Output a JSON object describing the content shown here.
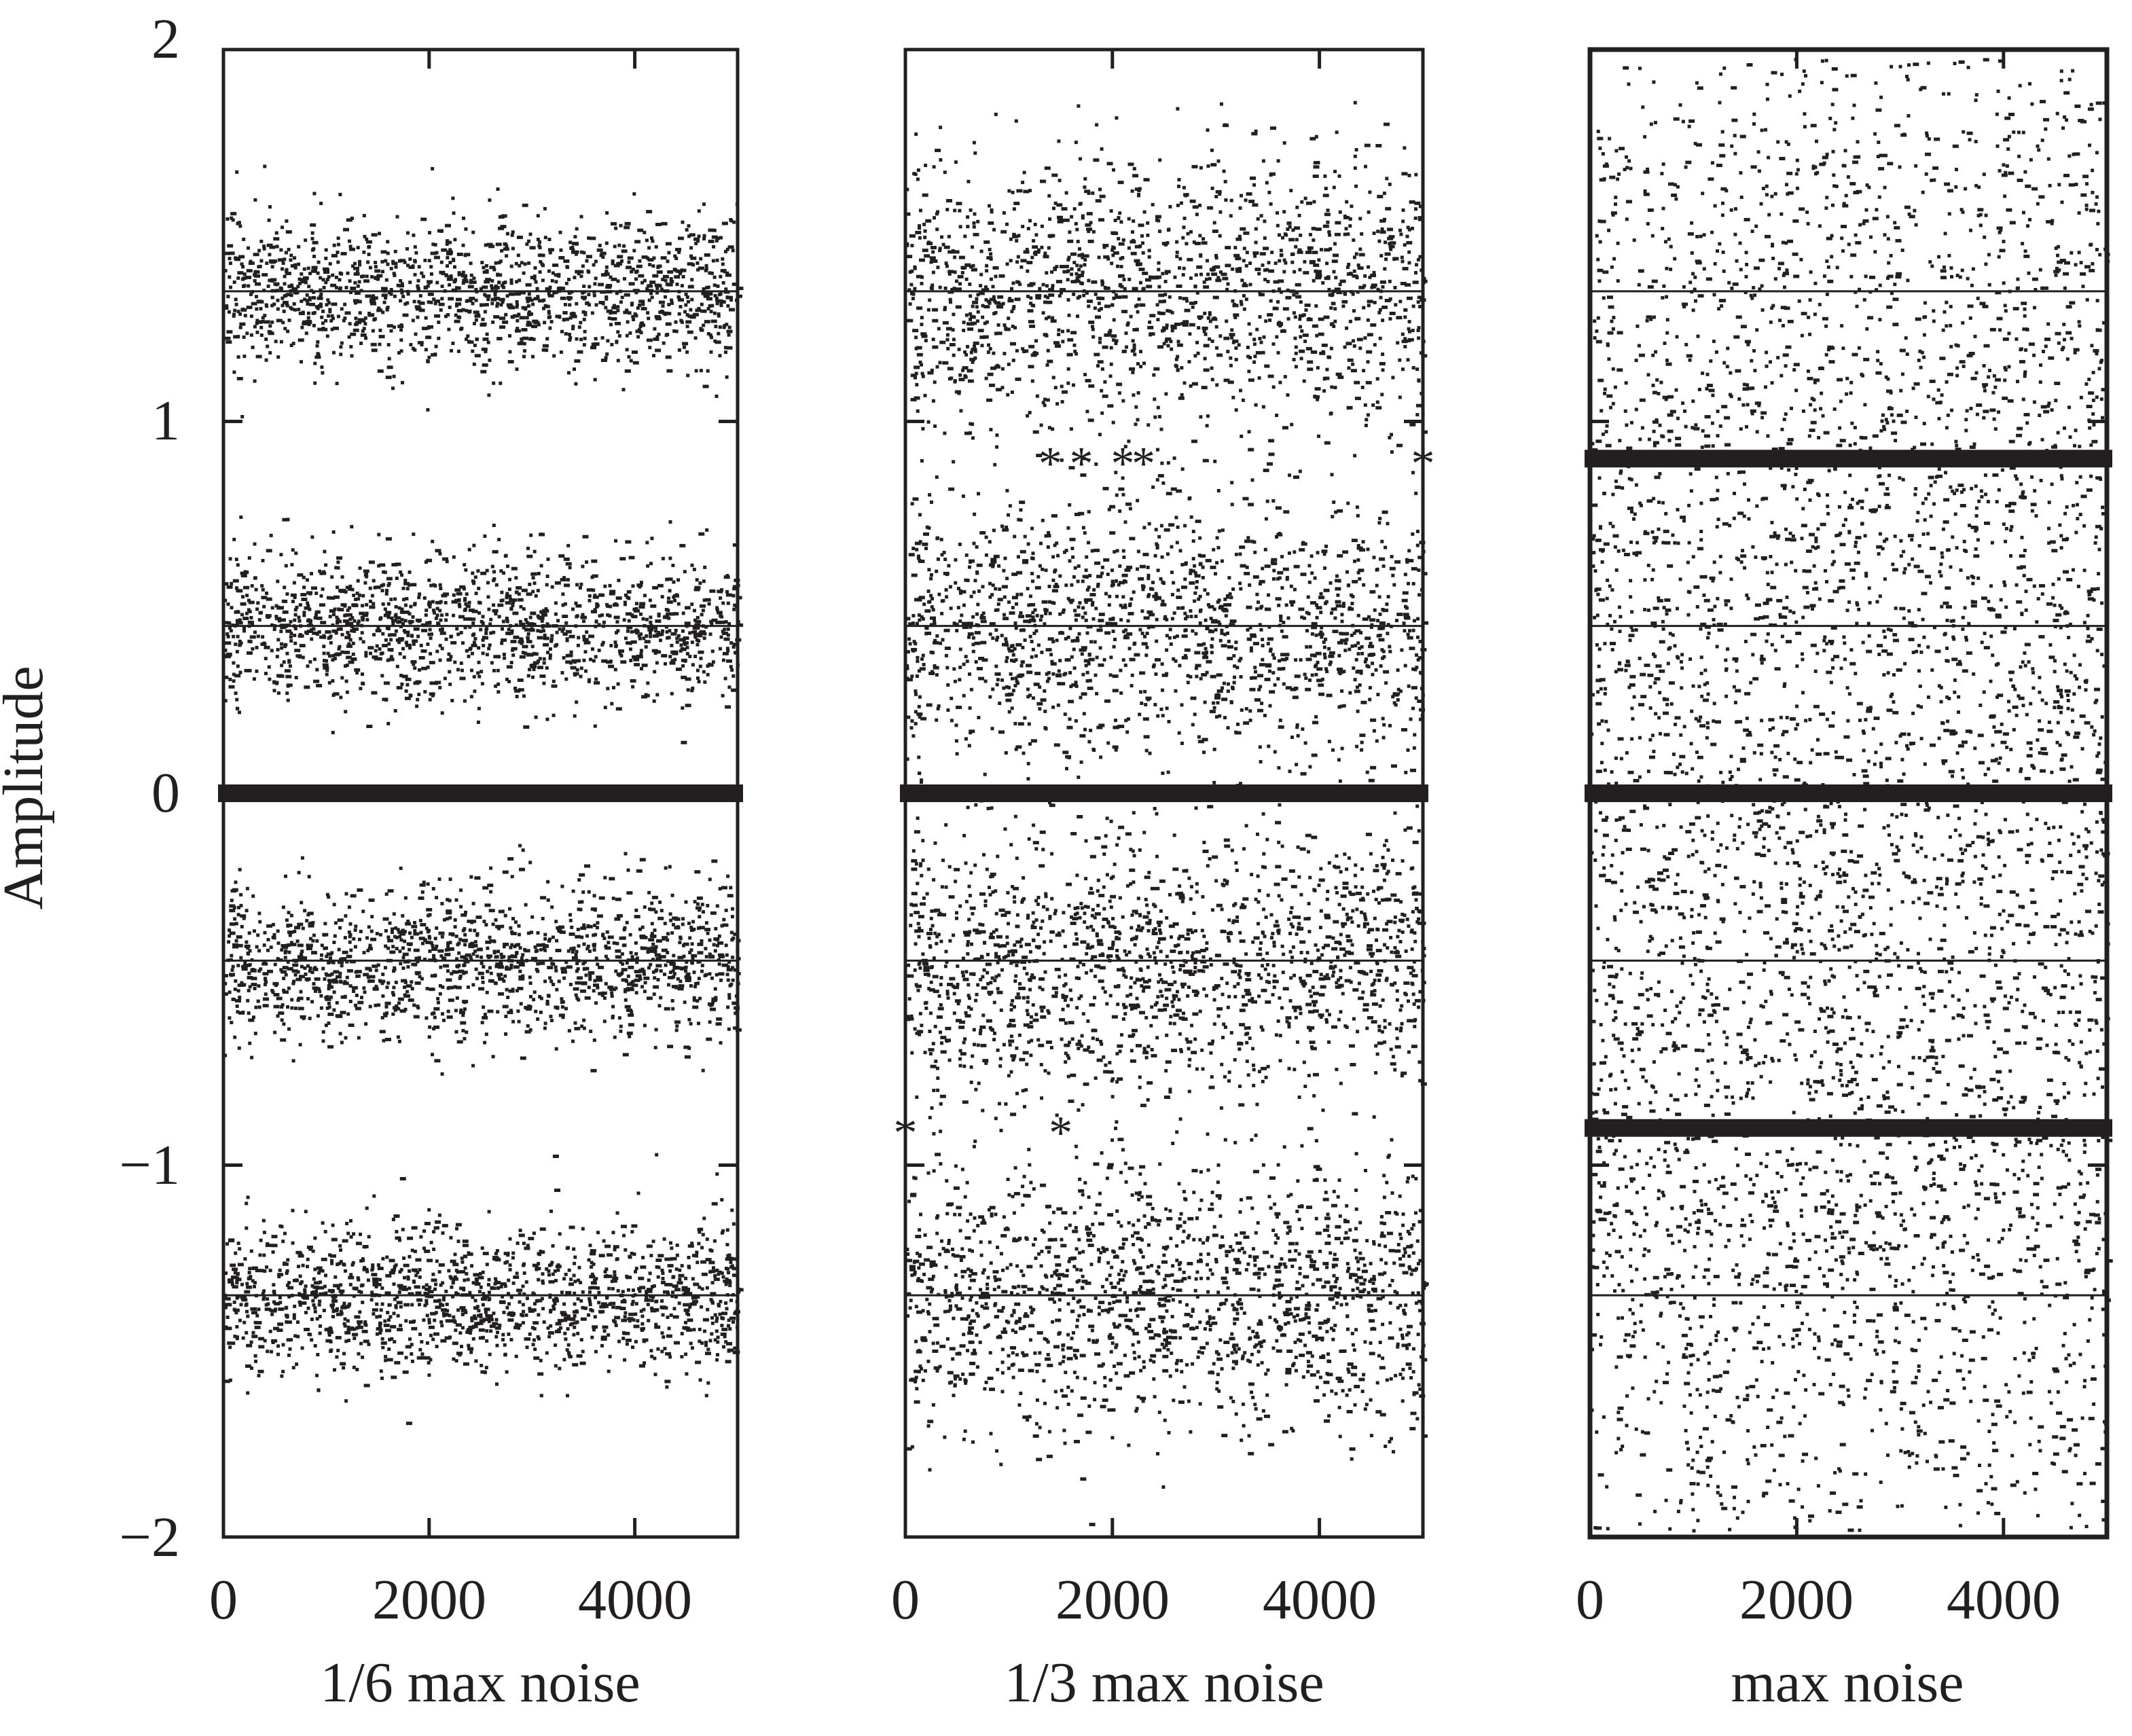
{
  "chart_data": [
    {
      "type": "scatter",
      "xlabel": "1/6 max noise",
      "ylabel": "Amplitude",
      "xlim": [
        0,
        5000
      ],
      "ylim": [
        -2,
        2
      ],
      "xticks": [
        "0",
        "2000",
        "4000"
      ],
      "yticks": [
        "2",
        "1",
        "0",
        "−1",
        "−2"
      ],
      "reference_lines": [
        1.35,
        0.45,
        -0.45,
        -1.35
      ],
      "clusters": [
        {
          "center": 1.35,
          "spread": 0.1,
          "count": 1400
        },
        {
          "center": 0.45,
          "spread": 0.1,
          "count": 1400
        },
        {
          "center": -0.45,
          "spread": 0.1,
          "count": 1400
        },
        {
          "center": -1.35,
          "spread": 0.1,
          "count": 1400
        }
      ],
      "decision_marks": [
        {
          "y": 0,
          "x_from": 0,
          "x_to": 5000
        }
      ]
    },
    {
      "type": "scatter",
      "xlabel": "1/3 max noise",
      "ylabel": "",
      "xlim": [
        0,
        5000
      ],
      "ylim": [
        -2,
        2
      ],
      "xticks": [
        "0",
        "2000",
        "4000"
      ],
      "reference_lines": [
        1.35,
        0.45,
        -0.45,
        -1.35
      ],
      "clusters": [
        {
          "center": 1.35,
          "spread": 0.18,
          "count": 1500
        },
        {
          "center": 0.45,
          "spread": 0.18,
          "count": 1500
        },
        {
          "center": -0.45,
          "spread": 0.18,
          "count": 1500
        },
        {
          "center": -1.35,
          "spread": 0.18,
          "count": 1500
        }
      ],
      "decision_marks": [
        {
          "y": 0,
          "x_from": 0,
          "x_to": 5000
        },
        {
          "y": 0.9,
          "x": [
            1400,
            1700,
            2100,
            2300,
            5000
          ]
        },
        {
          "y": -0.9,
          "x": [
            0,
            1500
          ]
        }
      ]
    },
    {
      "type": "scatter",
      "xlabel": "max noise",
      "ylabel": "",
      "xlim": [
        0,
        5000
      ],
      "ylim": [
        -2,
        2
      ],
      "xticks": [
        "0",
        "2000",
        "4000"
      ],
      "reference_lines": [
        1.35,
        0.45,
        -0.45,
        -1.35
      ],
      "clusters": [
        {
          "center": 1.35,
          "spread": 0.5,
          "count": 1200
        },
        {
          "center": 0.45,
          "spread": 0.5,
          "count": 1200
        },
        {
          "center": -0.45,
          "spread": 0.5,
          "count": 1200
        },
        {
          "center": -1.35,
          "spread": 0.5,
          "count": 1200
        }
      ],
      "decision_marks": [
        {
          "y": 0,
          "x_from": 0,
          "x_to": 5000
        },
        {
          "y": 0.9,
          "x_from": 0,
          "x_to": 5000
        },
        {
          "y": -0.9,
          "x_from": 0,
          "x_to": 5000
        }
      ]
    }
  ]
}
